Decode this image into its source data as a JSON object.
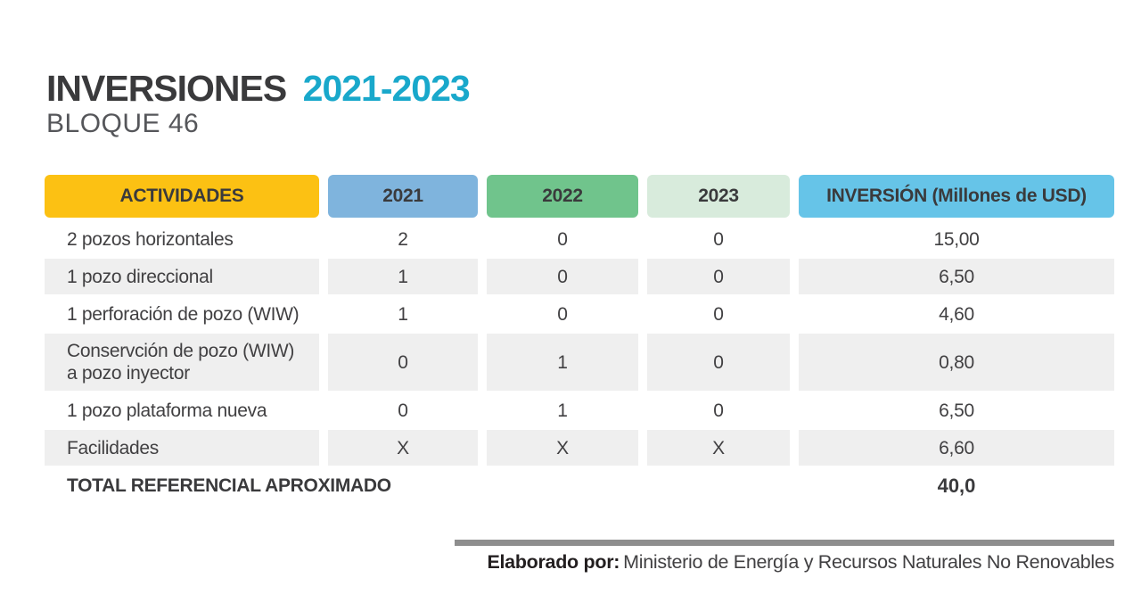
{
  "page": {
    "title_main": "INVERSIONES",
    "title_years": "2021-2023",
    "subtitle": "BLOQUE 46"
  },
  "colors": {
    "title_dark": "#3a3a3c",
    "title_accent": "#19a8cb",
    "header_actividades": "#fcc113",
    "header_2021": "#7fb4dd",
    "header_2022": "#70c48c",
    "header_2023": "#d8ebdc",
    "header_inversion": "#66c4e8",
    "row_shade": "#efefef",
    "footer_bar": "#8e8e8e"
  },
  "table": {
    "headers": [
      {
        "label": "ACTIVIDADES",
        "color": "#fcc113"
      },
      {
        "label": "2021",
        "color": "#7fb4dd"
      },
      {
        "label": "2022",
        "color": "#70c48c"
      },
      {
        "label": "2023",
        "color": "#d8ebdc"
      },
      {
        "label": "INVERSIÓN (Millones de USD)",
        "color": "#66c4e8"
      }
    ],
    "rows": [
      {
        "actividad": "2 pozos horizontales",
        "y2021": "2",
        "y2022": "0",
        "y2023": "0",
        "inversion": "15,00"
      },
      {
        "actividad": "1 pozo direccional",
        "y2021": "1",
        "y2022": "0",
        "y2023": "0",
        "inversion": "6,50"
      },
      {
        "actividad": "1 perforación de pozo (WIW)",
        "y2021": "1",
        "y2022": "0",
        "y2023": "0",
        "inversion": "4,60"
      },
      {
        "actividad": "Conservción de pozo (WIW) a pozo inyector",
        "y2021": "0",
        "y2022": "1",
        "y2023": "0",
        "inversion": "0,80"
      },
      {
        "actividad": "1 pozo plataforma nueva",
        "y2021": "0",
        "y2022": "1",
        "y2023": "0",
        "inversion": "6,50"
      },
      {
        "actividad": "Facilidades",
        "y2021": "X",
        "y2022": "X",
        "y2023": "X",
        "inversion": "6,60"
      }
    ],
    "total": {
      "label": "TOTAL REFERENCIAL APROXIMADO",
      "value": "40,0"
    }
  },
  "footer": {
    "prefix": "Elaborado por:",
    "text": "Ministerio de Energía y Recursos Naturales No Renovables"
  }
}
